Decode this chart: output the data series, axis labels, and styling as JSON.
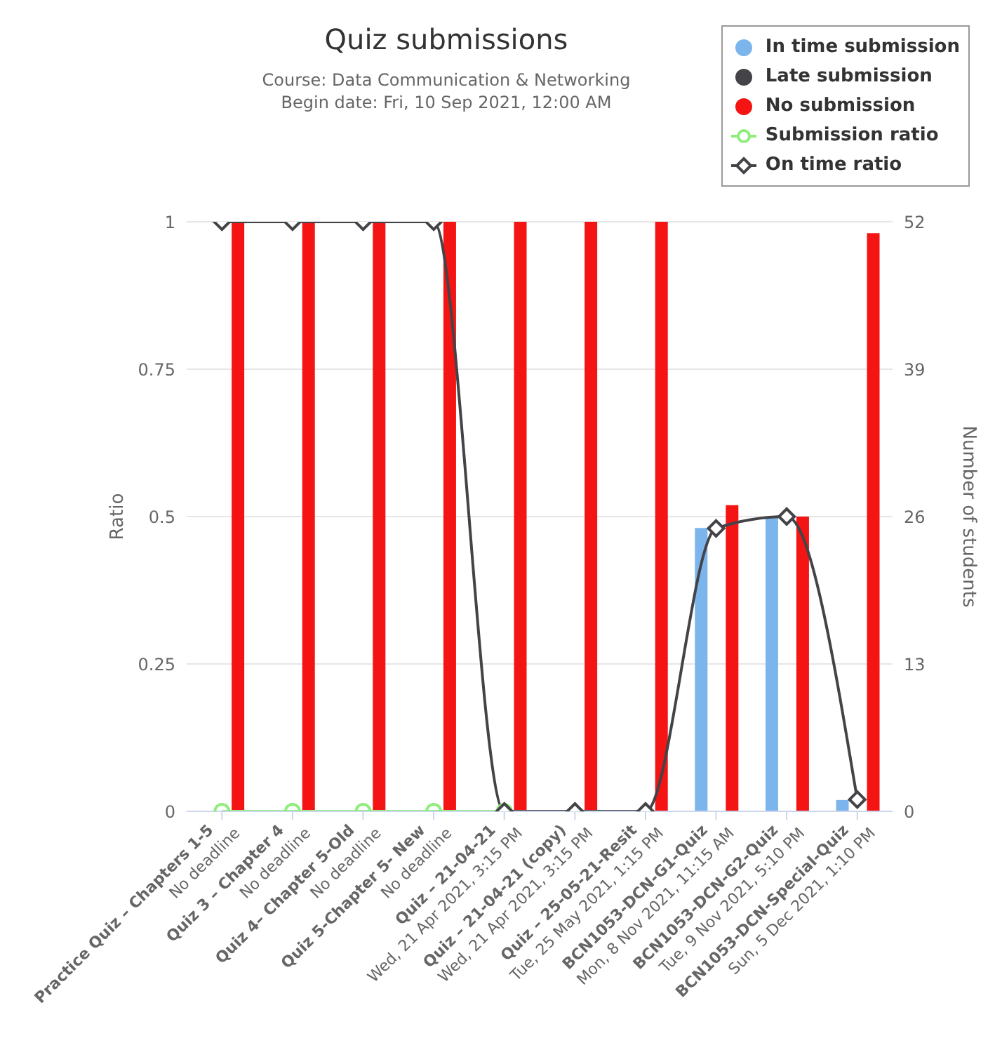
{
  "chart_data": {
    "type": "bar",
    "title": "Quiz submissions",
    "subtitle": "Course: Data Communication & Networking\nBegin date: Fri, 10 Sep 2021, 12:00 AM",
    "ylabel": "Ratio",
    "y2label": "Number of students",
    "categories": [
      "Practice Quiz – Chapters 1-5\nNo deadline",
      "Quiz 3 – Chapter 4\nNo deadline",
      "Quiz 4– Chapter 5-Old\nNo deadline",
      "Quiz 5-Chapter 5- New\nNo deadline",
      "Quiz – 21-04-21\nWed, 21 Apr 2021, 3:15 PM",
      "Quiz – 21-04-21 (copy)\nWed, 21 Apr 2021, 3:15 PM",
      "Quiz – 25-05-21-Resit\nTue, 25 May 2021, 1:15 PM",
      "BCN1053-DCN-G1-Quiz\nMon, 8 Nov 2021, 11:15 AM",
      "BCN1053-DCN-G2-Quiz\nTue, 9 Nov 2021, 5:10 PM",
      "BCN1053-DCN-Special-Quiz\nSun, 5 Dec 2021, 1:10 PM"
    ],
    "series": [
      {
        "name": "In time submission",
        "axis": "y2",
        "color": "#7cb5ec",
        "values": [
          0,
          0,
          0,
          0,
          0,
          0,
          0,
          25,
          26,
          1
        ]
      },
      {
        "name": "Late submission",
        "axis": "y2",
        "color": "#434348",
        "values": [
          0,
          0,
          0,
          0,
          0,
          0,
          0,
          0,
          0,
          0
        ]
      },
      {
        "name": "No submission",
        "axis": "y2",
        "color": "#f41414",
        "values": [
          52,
          52,
          52,
          52,
          52,
          52,
          52,
          27,
          26,
          51
        ]
      },
      {
        "name": "Submission ratio",
        "type": "line",
        "marker": "circle",
        "color": "#90ed7d",
        "values": [
          0,
          0,
          0,
          0,
          0,
          null,
          null,
          null,
          null,
          null
        ]
      },
      {
        "name": "On time ratio",
        "type": "line",
        "marker": "diamond",
        "color": "#434348",
        "values": [
          1,
          1,
          1,
          1,
          0,
          0,
          0,
          0.48,
          0.5,
          0.02
        ]
      }
    ],
    "ylim": [
      0,
      1
    ],
    "yticks": [
      0,
      0.25,
      0.5,
      0.75,
      1
    ],
    "y2lim": [
      0,
      52
    ],
    "y2ticks": [
      0,
      13,
      26,
      39,
      52
    ],
    "grid": "y",
    "legend": "top right"
  }
}
